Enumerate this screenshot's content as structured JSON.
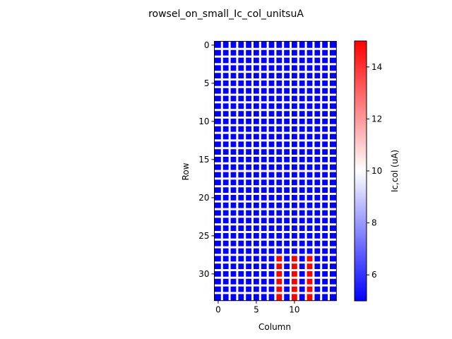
{
  "chart_data": {
    "type": "heatmap",
    "title": "rowsel_on_small_Ic_col_unitsuA",
    "xlabel": "Column",
    "ylabel": "Row",
    "n_rows": 34,
    "n_cols": 16,
    "base_value": 5,
    "high_value": 15,
    "high_cells": {
      "columns": [
        8,
        10,
        12
      ],
      "rows_from": 28,
      "rows_to": 33
    },
    "grid_lines": true,
    "grid_color": "#ffffff",
    "x_ticks": [
      0,
      5,
      10
    ],
    "y_ticks": [
      0,
      5,
      10,
      15,
      20,
      25,
      30
    ],
    "colorbar": {
      "label": "Ic,col (uA)",
      "min": 5,
      "max": 15,
      "ticks": [
        6,
        8,
        10,
        12,
        14
      ],
      "colormap": "bwr",
      "colors": [
        "#0000ff",
        "#ffffff",
        "#ff0000"
      ]
    }
  }
}
